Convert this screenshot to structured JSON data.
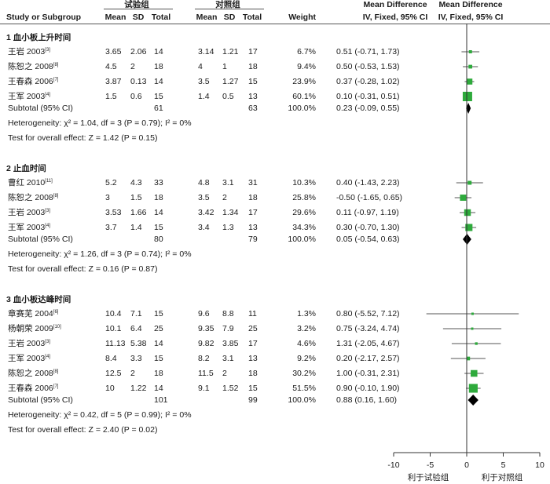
{
  "header": {
    "group1": "试验组",
    "group2": "对照组",
    "study": "Study or Subgroup",
    "mean": "Mean",
    "sd": "SD",
    "total": "Total",
    "weight": "Weight",
    "md_title": "Mean Difference",
    "md_sub": "IV, Fixed, 95% CI"
  },
  "sections": [
    {
      "title": "1 血小板上升时间",
      "rows": [
        {
          "study": "王岩 2003",
          "ref": "[3]",
          "m1": "3.65",
          "sd1": "2.06",
          "n1": "14",
          "m2": "3.14",
          "sd2": "1.21",
          "n2": "17",
          "weight": "6.7%",
          "ci": "0.51 (-0.71, 1.73)"
        },
        {
          "study": "陈恕之 2008",
          "ref": "[8]",
          "m1": "4.5",
          "sd1": "2",
          "n1": "18",
          "m2": "4",
          "sd2": "1",
          "n2": "18",
          "weight": "9.4%",
          "ci": "0.50 (-0.53, 1.53)"
        },
        {
          "study": "王春森 2006",
          "ref": "[7]",
          "m1": "3.87",
          "sd1": "0.13",
          "n1": "14",
          "m2": "3.5",
          "sd2": "1.27",
          "n2": "15",
          "weight": "23.9%",
          "ci": "0.37 (-0.28, 1.02)"
        },
        {
          "study": "王军 2003",
          "ref": "[4]",
          "m1": "1.5",
          "sd1": "0.6",
          "n1": "15",
          "m2": "1.4",
          "sd2": "0.5",
          "n2": "13",
          "weight": "60.1%",
          "ci": "0.10 (-0.31, 0.51)"
        }
      ],
      "subtotal": {
        "label": "Subtotal (95% CI)",
        "n1": "61",
        "n2": "63",
        "weight": "100.0%",
        "ci": "0.23 (-0.09, 0.55)"
      },
      "heterogeneity": "Heterogeneity: χ² = 1.04, df = 3 (P = 0.79); I² = 0%",
      "overall": "Test for overall effect: Z = 1.42 (P = 0.15)"
    },
    {
      "title": "2 止血时间",
      "rows": [
        {
          "study": "曹红 2010",
          "ref": "[11]",
          "m1": "5.2",
          "sd1": "4.3",
          "n1": "33",
          "m2": "4.8",
          "sd2": "3.1",
          "n2": "31",
          "weight": "10.3%",
          "ci": "0.40 (-1.43, 2.23)"
        },
        {
          "study": "陈恕之 2008",
          "ref": "[8]",
          "m1": "3",
          "sd1": "1.5",
          "n1": "18",
          "m2": "3.5",
          "sd2": "2",
          "n2": "18",
          "weight": "25.8%",
          "ci": "-0.50 (-1.65, 0.65)"
        },
        {
          "study": "王岩 2003",
          "ref": "[3]",
          "m1": "3.53",
          "sd1": "1.66",
          "n1": "14",
          "m2": "3.42",
          "sd2": "1.34",
          "n2": "17",
          "weight": "29.6%",
          "ci": "0.11 (-0.97, 1.19)"
        },
        {
          "study": "王军 2003",
          "ref": "[4]",
          "m1": "3.7",
          "sd1": "1.4",
          "n1": "15",
          "m2": "3.4",
          "sd2": "1.3",
          "n2": "13",
          "weight": "34.3%",
          "ci": "0.30 (-0.70, 1.30)"
        }
      ],
      "subtotal": {
        "label": "Subtotal (95% CI)",
        "n1": "80",
        "n2": "79",
        "weight": "100.0%",
        "ci": "0.05 (-0.54, 0.63)"
      },
      "heterogeneity": "Heterogeneity: χ² = 1.26, df = 3 (P = 0.74); I² = 0%",
      "overall": "Test for overall effect: Z = 0.16 (P = 0.87)"
    },
    {
      "title": "3 血小板达峰时间",
      "rows": [
        {
          "study": "章赛芜 2004",
          "ref": "[6]",
          "m1": "10.4",
          "sd1": "7.1",
          "n1": "15",
          "m2": "9.6",
          "sd2": "8.8",
          "n2": "11",
          "weight": "1.3%",
          "ci": "0.80 (-5.52, 7.12)"
        },
        {
          "study": "杨朝荣 2009",
          "ref": "[10]",
          "m1": "10.1",
          "sd1": "6.4",
          "n1": "25",
          "m2": "9.35",
          "sd2": "7.9",
          "n2": "25",
          "weight": "3.2%",
          "ci": "0.75 (-3.24, 4.74)"
        },
        {
          "study": "王岩 2003",
          "ref": "[3]",
          "m1": "11.13",
          "sd1": "5.38",
          "n1": "14",
          "m2": "9.82",
          "sd2": "3.85",
          "n2": "17",
          "weight": "4.6%",
          "ci": "1.31 (-2.05, 4.67)"
        },
        {
          "study": "王军 2003",
          "ref": "[4]",
          "m1": "8.4",
          "sd1": "3.3",
          "n1": "15",
          "m2": "8.2",
          "sd2": "3.1",
          "n2": "13",
          "weight": "9.2%",
          "ci": "0.20 (-2.17, 2.57)"
        },
        {
          "study": "陈恕之 2008",
          "ref": "[8]",
          "m1": "12.5",
          "sd1": "2",
          "n1": "18",
          "m2": "11.5",
          "sd2": "2",
          "n2": "18",
          "weight": "30.2%",
          "ci": "1.00 (-0.31, 2.31)"
        },
        {
          "study": "王春森 2006",
          "ref": "[7]",
          "m1": "10",
          "sd1": "1.22",
          "n1": "14",
          "m2": "9.1",
          "sd2": "1.52",
          "n2": "15",
          "weight": "51.5%",
          "ci": "0.90 (-0.10, 1.90)"
        }
      ],
      "subtotal": {
        "label": "Subtotal (95% CI)",
        "n1": "101",
        "n2": "99",
        "weight": "100.0%",
        "ci": "0.88 (0.16, 1.60)"
      },
      "heterogeneity": "Heterogeneity: χ² = 0.42, df = 5 (P = 0.99); I² = 0%",
      "overall": "Test for overall effect: Z = 2.40 (P = 0.02)"
    }
  ],
  "axis": {
    "ticks": [
      "-10",
      "-5",
      "0",
      "5",
      "10"
    ],
    "favours_left": "利于试验组",
    "favours_right": "利于对照组"
  },
  "colors": {
    "square": "#2eaa3c",
    "diamond": "#000000",
    "line": "#555555"
  },
  "chart_data": {
    "type": "scatter",
    "title": "",
    "xlabel": "",
    "ylabel": "",
    "xlim": [
      -10,
      10
    ],
    "reference_line": 0,
    "series": [
      {
        "name": "1 血小板上升时间",
        "studies": [
          {
            "label": "王岩 2003",
            "md": 0.51,
            "lo": -0.71,
            "hi": 1.73,
            "weight": 6.7
          },
          {
            "label": "陈恕之 2008",
            "md": 0.5,
            "lo": -0.53,
            "hi": 1.53,
            "weight": 9.4
          },
          {
            "label": "王春森 2006",
            "md": 0.37,
            "lo": -0.28,
            "hi": 1.02,
            "weight": 23.9
          },
          {
            "label": "王军 2003",
            "md": 0.1,
            "lo": -0.31,
            "hi": 0.51,
            "weight": 60.1
          }
        ],
        "pooled": {
          "md": 0.23,
          "lo": -0.09,
          "hi": 0.55
        }
      },
      {
        "name": "2 止血时间",
        "studies": [
          {
            "label": "曹红 2010",
            "md": 0.4,
            "lo": -1.43,
            "hi": 2.23,
            "weight": 10.3
          },
          {
            "label": "陈恕之 2008",
            "md": -0.5,
            "lo": -1.65,
            "hi": 0.65,
            "weight": 25.8
          },
          {
            "label": "王岩 2003",
            "md": 0.11,
            "lo": -0.97,
            "hi": 1.19,
            "weight": 29.6
          },
          {
            "label": "王军 2003",
            "md": 0.3,
            "lo": -0.7,
            "hi": 1.3,
            "weight": 34.3
          }
        ],
        "pooled": {
          "md": 0.05,
          "lo": -0.54,
          "hi": 0.63
        }
      },
      {
        "name": "3 血小板达峰时间",
        "studies": [
          {
            "label": "章赛芜 2004",
            "md": 0.8,
            "lo": -5.52,
            "hi": 7.12,
            "weight": 1.3
          },
          {
            "label": "杨朝荣 2009",
            "md": 0.75,
            "lo": -3.24,
            "hi": 4.74,
            "weight": 3.2
          },
          {
            "label": "王岩 2003",
            "md": 1.31,
            "lo": -2.05,
            "hi": 4.67,
            "weight": 4.6
          },
          {
            "label": "王军 2003",
            "md": 0.2,
            "lo": -2.17,
            "hi": 2.57,
            "weight": 9.2
          },
          {
            "label": "陈恕之 2008",
            "md": 1.0,
            "lo": -0.31,
            "hi": 2.31,
            "weight": 30.2
          },
          {
            "label": "王春森 2006",
            "md": 0.9,
            "lo": -0.1,
            "hi": 1.9,
            "weight": 51.5
          }
        ],
        "pooled": {
          "md": 0.88,
          "lo": 0.16,
          "hi": 1.6
        }
      }
    ]
  }
}
